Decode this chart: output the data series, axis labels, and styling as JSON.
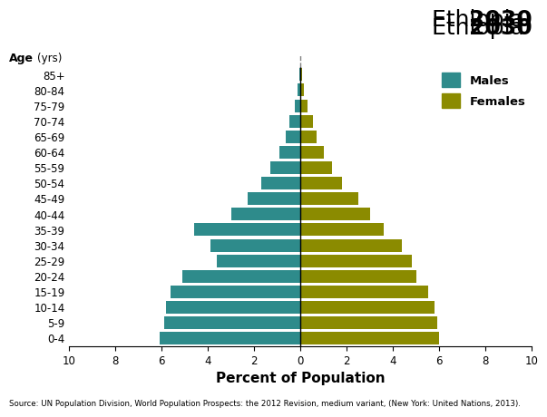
{
  "title_country": "Ethiopia ",
  "title_year": "2030",
  "xlabel": "Percent of Population",
  "age_groups": [
    "0-4",
    "5-9",
    "10-14",
    "15-19",
    "20-24",
    "25-29",
    "30-34",
    "35-39",
    "40-44",
    "45-49",
    "50-54",
    "55-59",
    "60-64",
    "65-69",
    "70-74",
    "75-79",
    "80-84",
    "85+"
  ],
  "males": [
    6.1,
    5.9,
    5.8,
    5.6,
    5.1,
    3.6,
    3.9,
    4.6,
    3.0,
    2.3,
    1.7,
    1.3,
    0.9,
    0.65,
    0.5,
    0.25,
    0.12,
    0.06
  ],
  "females": [
    6.0,
    5.9,
    5.8,
    5.5,
    5.0,
    4.8,
    4.4,
    3.6,
    3.0,
    2.5,
    1.8,
    1.35,
    1.0,
    0.7,
    0.55,
    0.3,
    0.15,
    0.07
  ],
  "male_color": "#2e8b8b",
  "female_color": "#8b8b00",
  "xlim": 10,
  "bar_height": 0.82,
  "source_text": "Source: UN Population Division, World Population Prospects: the 2012 Revision, medium variant, (New York: United Nations, 2013).",
  "background_color": "#ffffff"
}
